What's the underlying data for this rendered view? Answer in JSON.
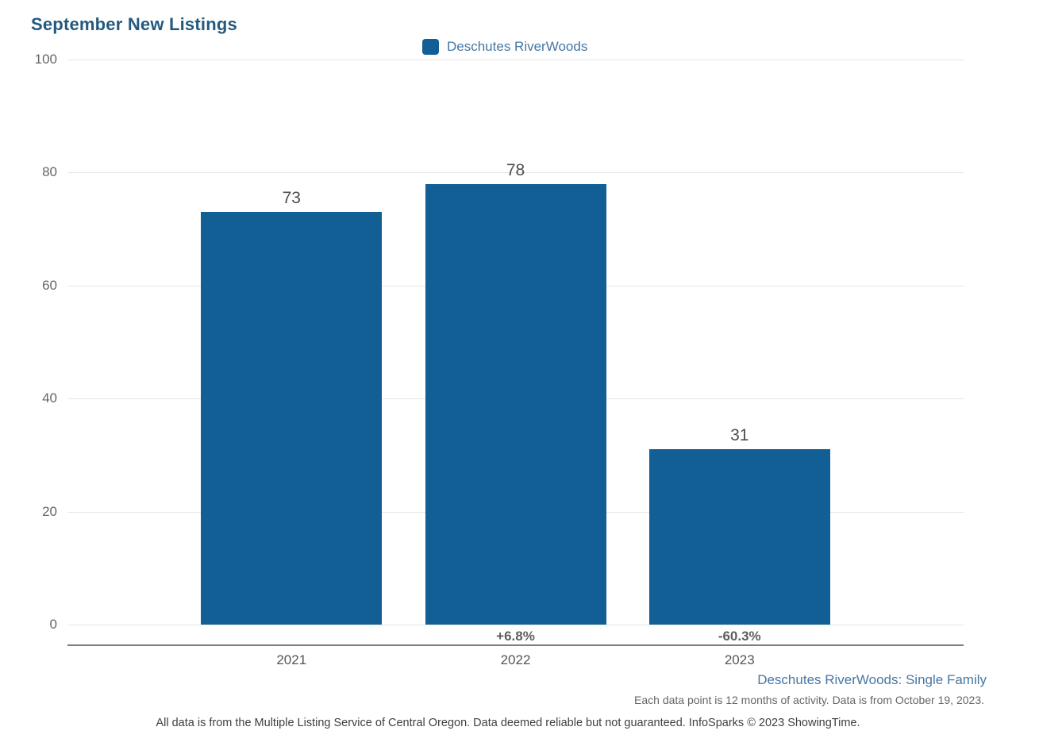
{
  "chart": {
    "title": "September New Listings",
    "legend": {
      "label": "Deschutes RiverWoods"
    }
  },
  "chart_data": {
    "type": "bar",
    "title": "September New Listings",
    "series_name": "Deschutes RiverWoods",
    "categories": [
      "2021",
      "2022",
      "2023"
    ],
    "values": [
      73,
      78,
      31
    ],
    "value_labels": [
      "73",
      "78",
      "31"
    ],
    "pct_changes": [
      "",
      "+6.8%",
      "-60.3%"
    ],
    "xlabel": "",
    "ylabel": "",
    "ylim": [
      0,
      100
    ],
    "yticks": [
      100,
      80,
      60,
      40,
      20,
      0
    ],
    "grid": "horizontal",
    "legend_position": "top-center",
    "bar_color": "#115F94"
  },
  "footer": {
    "series_note": "Deschutes RiverWoods: Single Family",
    "data_note": "Each data point is 12 months of activity. Data is from October 19, 2023.",
    "disclaimer": "All data is from the Multiple Listing Service of Central Oregon. Data deemed reliable but not guaranteed. InfoSparks © 2023 ShowingTime."
  },
  "colors": {
    "bar": "#115F94",
    "title_text": "#24597F",
    "legend_text": "#4677A4",
    "grid_line": "#E5E5E5",
    "axis_line": "#7F7F7F"
  }
}
